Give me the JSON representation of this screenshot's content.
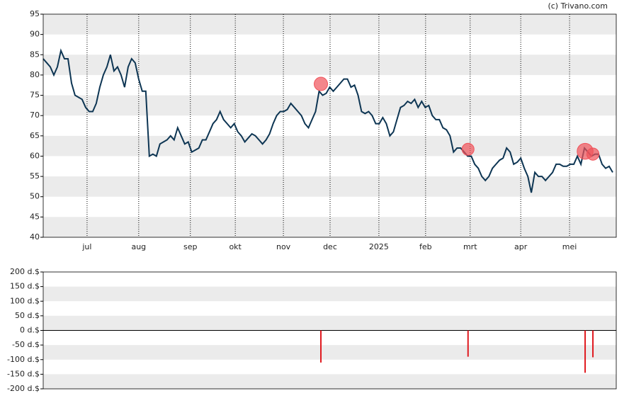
{
  "credit": "(c) Trivano.com",
  "chart_data": [
    {
      "type": "line",
      "series": [
        {
          "color": "#0d3553",
          "values": [
            84,
            83,
            82,
            80,
            82,
            86,
            84,
            84,
            78,
            75,
            74.5,
            74,
            72,
            71,
            71,
            73,
            77,
            80,
            82,
            85,
            81,
            82,
            80,
            77,
            82,
            84,
            83,
            79,
            76,
            76,
            60,
            60.5,
            60,
            63,
            63.5,
            64,
            65,
            64,
            67,
            65,
            63,
            63.5,
            61,
            61.5,
            62,
            64,
            64,
            66,
            68,
            69,
            71,
            69,
            68,
            67,
            68,
            66,
            65,
            63.5,
            64.5,
            65.5,
            65,
            64,
            63,
            64,
            65.5,
            68,
            70,
            71,
            71,
            71.5,
            73,
            72,
            71,
            70,
            68,
            67,
            69,
            71,
            76,
            75,
            75.5,
            77,
            76,
            77,
            78,
            79,
            79,
            77,
            77.5,
            75,
            71,
            70.5,
            71,
            70,
            68,
            68,
            69.5,
            68,
            65,
            66,
            69,
            72,
            72.5,
            73.5,
            73,
            74,
            72,
            73.5,
            72,
            72.5,
            70,
            69,
            69,
            67,
            66.5,
            65,
            61,
            62,
            62,
            61,
            60,
            60,
            58,
            57,
            55,
            54,
            55,
            57,
            58,
            59,
            59.5,
            62,
            61,
            58,
            58.5,
            59.5,
            57,
            55,
            51,
            56,
            55,
            55,
            54,
            55,
            56,
            58,
            58,
            57.5,
            57.5,
            58,
            58,
            60,
            58,
            62,
            61,
            60,
            60.5,
            60.5,
            58,
            57,
            57.5,
            56
          ]
        }
      ],
      "markers": {
        "color": "#f0525a",
        "x": [
          78.5,
          120.1,
          153.2,
          155.4
        ],
        "y": [
          77.8,
          61.7,
          61.2,
          60.5
        ]
      },
      "xlim": [
        0,
        162
      ],
      "xticks": [
        {
          "value": 12.4,
          "label": "jul"
        },
        {
          "value": 27.0,
          "label": "aug"
        },
        {
          "value": 41.6,
          "label": "sep"
        },
        {
          "value": 54.3,
          "label": "okt"
        },
        {
          "value": 67.9,
          "label": "nov"
        },
        {
          "value": 81.1,
          "label": "dec"
        },
        {
          "value": 94.9,
          "label": "2025"
        },
        {
          "value": 108.1,
          "label": "feb"
        },
        {
          "value": 120.7,
          "label": "mrt"
        },
        {
          "value": 135.0,
          "label": "apr"
        },
        {
          "value": 148.8,
          "label": "mei"
        }
      ],
      "ylim": [
        40,
        95
      ],
      "yticks": [
        40,
        45,
        50,
        55,
        60,
        65,
        70,
        75,
        80,
        85,
        90,
        95
      ]
    },
    {
      "type": "bar",
      "color": "#e0191f",
      "x": [
        78.5,
        120.1,
        153.2,
        155.4
      ],
      "values": [
        -110,
        -90,
        -145,
        -92
      ],
      "xlim": [
        0,
        162
      ],
      "ylim": [
        -200,
        200
      ],
      "yticks": [
        {
          "value": -200,
          "label": "-200 d.$"
        },
        {
          "value": -150,
          "label": "-150 d.$"
        },
        {
          "value": -100,
          "label": "-100 d.$"
        },
        {
          "value": -50,
          "label": "-50 d.$"
        },
        {
          "value": 0,
          "label": "0 d.$"
        },
        {
          "value": 50,
          "label": "50 d.$"
        },
        {
          "value": 100,
          "label": "100 d.$"
        },
        {
          "value": 150,
          "label": "150 d.$"
        },
        {
          "value": 200,
          "label": "200 d.$"
        }
      ]
    }
  ]
}
